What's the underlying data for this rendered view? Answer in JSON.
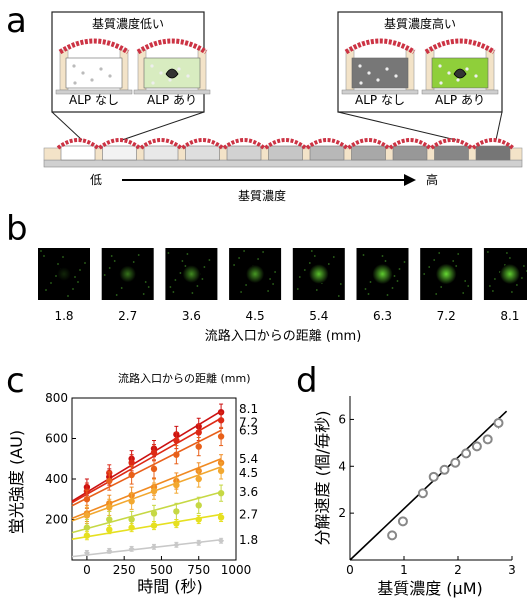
{
  "panel_a": {
    "letter": "a",
    "low_box_title": "基質濃度低い",
    "high_box_title": "基質濃度高い",
    "no_alp": "ALP なし",
    "with_alp": "ALP あり",
    "arrow_low": "低",
    "arrow_high": "高",
    "arrow_label": "基質濃度",
    "channel_fills": [
      "#ffffff",
      "#f2f2f2",
      "#e8e8e8",
      "#dedede",
      "#d2d2d2",
      "#c6c6c6",
      "#b8b8b8",
      "#a8a8a8",
      "#989898",
      "#878787",
      "#767676"
    ],
    "colors": {
      "cell_red": "#cc3344",
      "green_fill": "#8fcf3a",
      "light_green": "#d8ecc0",
      "gray_fill": "#777777"
    }
  },
  "panel_b": {
    "letter": "b",
    "distances": [
      "1.8",
      "2.7",
      "3.6",
      "4.5",
      "5.4",
      "6.3",
      "7.2",
      "8.1"
    ],
    "spot_intensity": [
      0.15,
      0.45,
      0.55,
      0.6,
      0.75,
      0.8,
      0.85,
      0.8
    ],
    "axis_label": "流路入口からの距離 (mm)"
  },
  "chart_data": [
    {
      "type": "scatter",
      "panel": "c",
      "legend_title": "流路入口からの距離 (mm)",
      "xlabel": "時間 (秒)",
      "ylabel": "蛍光強度 (AU)",
      "xlim": [
        -100,
        1000
      ],
      "ylim": [
        0,
        800
      ],
      "xticks": [
        "0",
        "250",
        "500",
        "750",
        "1000"
      ],
      "yticks": [
        "200",
        "400",
        "600",
        "800"
      ],
      "x": [
        0,
        150,
        300,
        450,
        600,
        750,
        900
      ],
      "series": [
        {
          "name": "8.1",
          "color": "#cc1111",
          "values": [
            360,
            410,
            500,
            550,
            620,
            660,
            730
          ],
          "err": 40,
          "fit": [
            335,
            735
          ]
        },
        {
          "name": "7.2",
          "color": "#dd2a16",
          "values": [
            340,
            430,
            480,
            530,
            590,
            630,
            690
          ],
          "err": 40,
          "fit": [
            325,
            700
          ]
        },
        {
          "name": "6.3",
          "color": "#e8601a",
          "values": [
            300,
            390,
            420,
            450,
            520,
            560,
            610
          ],
          "err": 45,
          "fit": [
            305,
            640
          ]
        },
        {
          "name": "5.4",
          "color": "#f08a22",
          "values": [
            230,
            280,
            320,
            360,
            390,
            440,
            480
          ],
          "err": 40,
          "fit": [
            235,
            500
          ]
        },
        {
          "name": "4.5",
          "color": "#f2a830",
          "values": [
            220,
            260,
            290,
            340,
            370,
            400,
            440
          ],
          "err": 40,
          "fit": [
            220,
            460
          ]
        },
        {
          "name": "3.6",
          "color": "#c6d844",
          "values": [
            160,
            200,
            200,
            230,
            240,
            270,
            330
          ],
          "err": 40,
          "fit": [
            155,
            335
          ]
        },
        {
          "name": "2.7",
          "color": "#e6e020",
          "values": [
            120,
            150,
            160,
            170,
            180,
            200,
            210
          ],
          "err": 20,
          "fit": [
            115,
            225
          ]
        },
        {
          "name": "1.8",
          "color": "#c8c8c8",
          "values": [
            35,
            45,
            55,
            65,
            75,
            85,
            95
          ],
          "err": 12,
          "fit": [
            25,
            100
          ]
        }
      ]
    },
    {
      "type": "scatter",
      "panel": "d",
      "xlabel": "基質濃度 (μM)",
      "ylabel": "分解速度 (個/毎秒)",
      "xlim": [
        0,
        3
      ],
      "ylim": [
        0,
        7
      ],
      "xticks": [
        "0",
        "1",
        "2",
        "3"
      ],
      "yticks": [
        "2",
        "4",
        "6"
      ],
      "x": [
        0.78,
        0.98,
        1.35,
        1.55,
        1.75,
        1.95,
        2.15,
        2.35,
        2.55,
        2.75
      ],
      "y": [
        1.05,
        1.65,
        2.85,
        3.55,
        3.85,
        4.15,
        4.55,
        4.85,
        5.15,
        5.85
      ],
      "err": [
        0.15,
        0.15,
        0.2,
        0.2,
        0.15,
        0.2,
        0.2,
        0.2,
        0.2,
        0.25
      ],
      "fit_line": {
        "x": [
          0,
          2.9
        ],
        "y": [
          0,
          6.35
        ]
      },
      "point_color": "#888888"
    }
  ]
}
